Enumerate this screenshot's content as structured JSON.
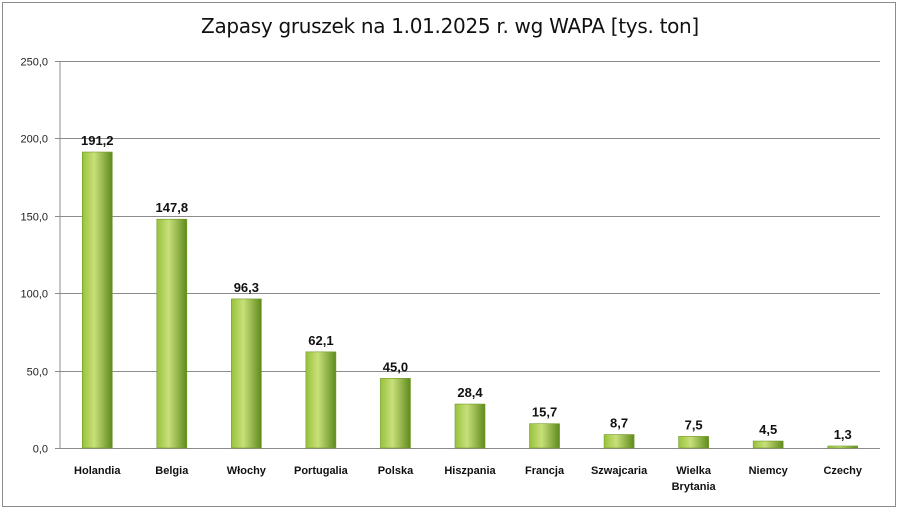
{
  "chart_data": {
    "type": "bar",
    "title": "Zapasy gruszek na 1.01.2025  r. wg WAPA [tys. ton]",
    "categories": [
      "Holandia",
      "Belgia",
      "Włochy",
      "Portugalia",
      "Polska",
      "Hiszpania",
      "Francja",
      "Szwajcaria",
      "Wielka Brytania",
      "Niemcy",
      "Czechy"
    ],
    "values": [
      191.2,
      147.8,
      96.3,
      62.1,
      45.0,
      28.4,
      15.7,
      8.7,
      7.5,
      4.5,
      1.3
    ],
    "value_labels": [
      "191,2",
      "147,8",
      "96,3",
      "62,1",
      "45,0",
      "28,4",
      "15,7",
      "8,7",
      "7,5",
      "4,5",
      "1,3"
    ],
    "y_ticks": [
      0,
      50,
      100,
      150,
      200,
      250
    ],
    "y_tick_labels": [
      "0,0",
      "50,0",
      "100,0",
      "150,0",
      "200,0",
      "250,0"
    ],
    "ylim": [
      0,
      250
    ],
    "xlabel": "",
    "ylabel": "",
    "grid": true,
    "colors": {
      "bar_light": "#c8e07a",
      "bar_mid": "#98c23c",
      "bar_dark": "#5f8a1c",
      "grid": "#8c8c8c"
    }
  }
}
